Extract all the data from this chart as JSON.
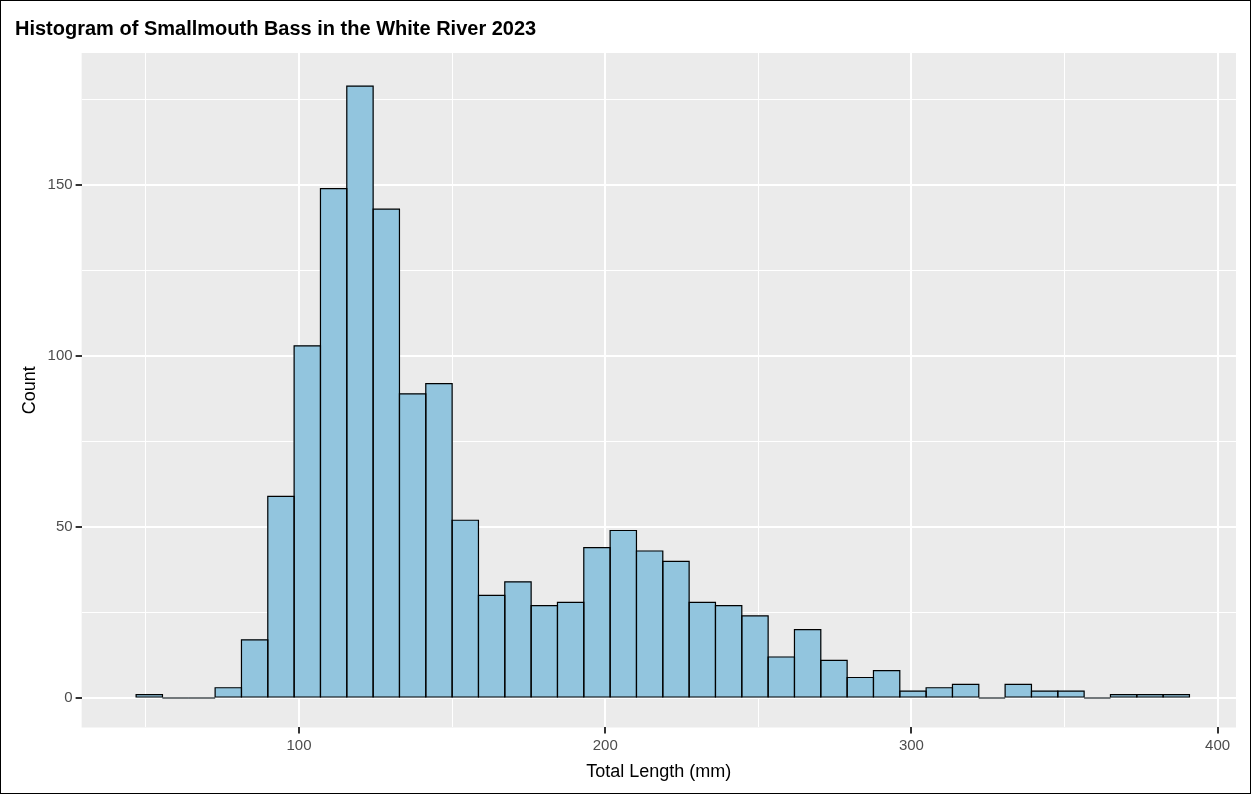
{
  "chart_data": {
    "type": "histogram",
    "title": "Histogram of Smallmouth Bass in the White River 2023",
    "xlabel": "Total Length (mm)",
    "ylabel": "Count",
    "bins": [
      46.8,
      55.4,
      64.0,
      72.6,
      81.2,
      89.8,
      98.4,
      107.0,
      115.6,
      124.2,
      132.8,
      141.4,
      150.0,
      158.6,
      167.2,
      175.8,
      184.4,
      193.0,
      201.6,
      210.2,
      218.8,
      227.4,
      236.0,
      244.6,
      253.2,
      261.8,
      270.4,
      279.0,
      287.6,
      296.2,
      304.8,
      313.4,
      322.0,
      330.6,
      339.2,
      347.8,
      356.4,
      365.0,
      373.6,
      382.2,
      390.8
    ],
    "values": [
      1,
      0,
      0,
      3,
      17,
      59,
      103,
      149,
      179,
      143,
      89,
      92,
      52,
      30,
      34,
      27,
      28,
      44,
      49,
      43,
      40,
      28,
      27,
      24,
      12,
      20,
      11,
      6,
      8,
      2,
      3,
      4,
      0,
      4,
      2,
      2,
      0,
      1,
      1,
      1
    ],
    "color": "#92c5de",
    "xlim": [
      29,
      406
    ],
    "xticks": [
      {
        "value": 50,
        "label": null
      },
      100,
      {
        "value": 150,
        "label": null
      },
      200,
      {
        "value": 250,
        "label": null
      },
      300,
      {
        "value": 350,
        "label": null
      },
      400
    ],
    "ylim": [
      -8.6,
      188.7
    ],
    "yticks": [
      0,
      {
        "value": 25,
        "label": null
      },
      50,
      {
        "value": 75,
        "label": null
      },
      100,
      {
        "value": 125,
        "label": null
      },
      150,
      {
        "value": 175,
        "label": null
      }
    ],
    "grid": true,
    "legend": false
  }
}
